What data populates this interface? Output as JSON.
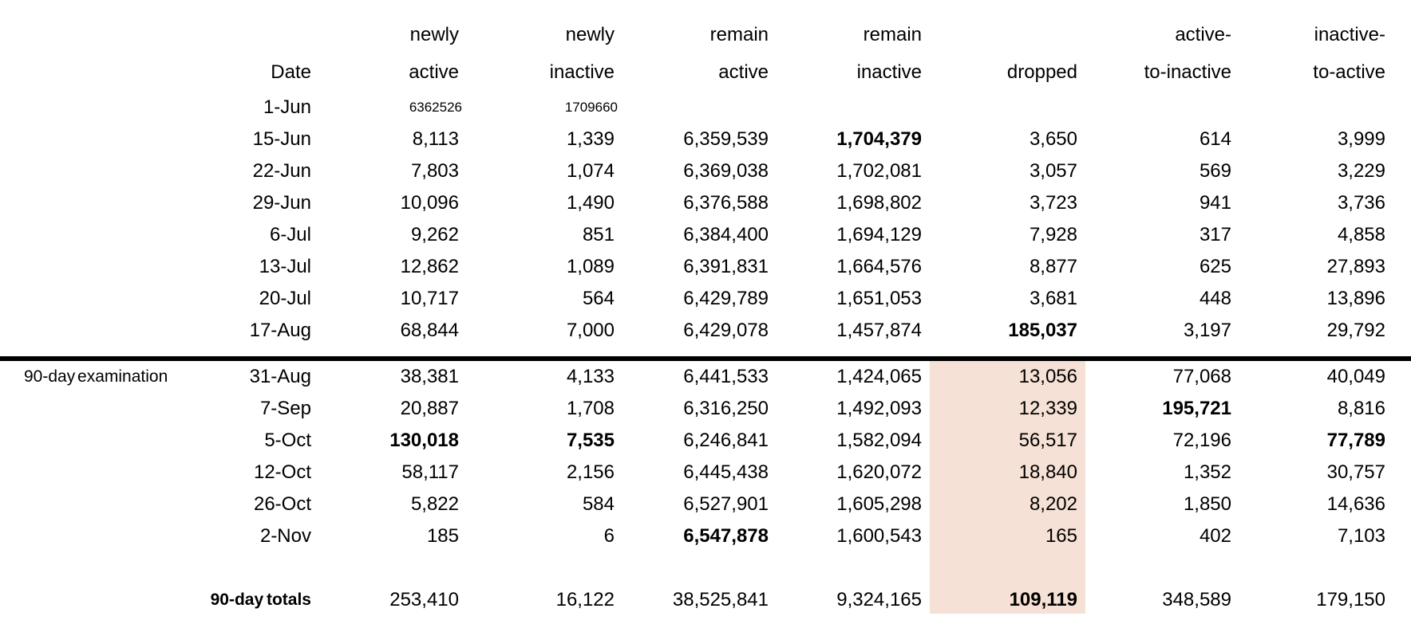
{
  "colors": {
    "highlight_band": "#f5e1d5",
    "divider_rule": "#000000",
    "text": "#000000",
    "background": "#ffffff"
  },
  "table": {
    "header_row1": [
      "",
      "",
      "newly",
      "newly",
      "remain",
      "remain",
      "",
      "active-",
      "inactive-"
    ],
    "header_row2": [
      "",
      "Date",
      "active",
      "inactive",
      "active",
      "inactive",
      "dropped",
      "to-inactive",
      "to-active"
    ],
    "section_label": "90-day examination",
    "rows": [
      {
        "label": "",
        "date": "1-Jun",
        "small": true,
        "cells": [
          {
            "v": "6362526"
          },
          {
            "v": "1709660"
          },
          {
            "v": ""
          },
          {
            "v": ""
          },
          {
            "v": ""
          },
          {
            "v": ""
          },
          {
            "v": ""
          }
        ]
      },
      {
        "label": "",
        "date": "15-Jun",
        "cells": [
          {
            "v": "8,113"
          },
          {
            "v": "1,339"
          },
          {
            "v": "6,359,539"
          },
          {
            "v": "1,704,379",
            "b": true
          },
          {
            "v": "3,650"
          },
          {
            "v": "614"
          },
          {
            "v": "3,999"
          }
        ]
      },
      {
        "label": "",
        "date": "22-Jun",
        "cells": [
          {
            "v": "7,803"
          },
          {
            "v": "1,074"
          },
          {
            "v": "6,369,038"
          },
          {
            "v": "1,702,081"
          },
          {
            "v": "3,057"
          },
          {
            "v": "569"
          },
          {
            "v": "3,229"
          }
        ]
      },
      {
        "label": "",
        "date": "29-Jun",
        "cells": [
          {
            "v": "10,096"
          },
          {
            "v": "1,490"
          },
          {
            "v": "6,376,588"
          },
          {
            "v": "1,698,802"
          },
          {
            "v": "3,723"
          },
          {
            "v": "941"
          },
          {
            "v": "3,736"
          }
        ]
      },
      {
        "label": "",
        "date": "6-Jul",
        "cells": [
          {
            "v": "9,262"
          },
          {
            "v": "851"
          },
          {
            "v": "6,384,400"
          },
          {
            "v": "1,694,129"
          },
          {
            "v": "7,928"
          },
          {
            "v": "317"
          },
          {
            "v": "4,858"
          }
        ]
      },
      {
        "label": "",
        "date": "13-Jul",
        "cells": [
          {
            "v": "12,862"
          },
          {
            "v": "1,089"
          },
          {
            "v": "6,391,831"
          },
          {
            "v": "1,664,576"
          },
          {
            "v": "8,877"
          },
          {
            "v": "625"
          },
          {
            "v": "27,893"
          }
        ]
      },
      {
        "label": "",
        "date": "20-Jul",
        "cells": [
          {
            "v": "10,717"
          },
          {
            "v": "564"
          },
          {
            "v": "6,429,789"
          },
          {
            "v": "1,651,053"
          },
          {
            "v": "3,681"
          },
          {
            "v": "448"
          },
          {
            "v": "13,896"
          }
        ]
      },
      {
        "label": "",
        "date": "17-Aug",
        "cells": [
          {
            "v": "68,844"
          },
          {
            "v": "7,000"
          },
          {
            "v": "6,429,078"
          },
          {
            "v": "1,457,874"
          },
          {
            "v": "185,037",
            "b": true
          },
          {
            "v": "3,197"
          },
          {
            "v": "29,792"
          }
        ]
      },
      {
        "label": "90-day examination",
        "date": "31-Aug",
        "divider_before": true,
        "cells": [
          {
            "v": "38,381"
          },
          {
            "v": "4,133"
          },
          {
            "v": "6,441,533"
          },
          {
            "v": "1,424,065"
          },
          {
            "v": "13,056"
          },
          {
            "v": "77,068"
          },
          {
            "v": "40,049"
          }
        ]
      },
      {
        "label": "",
        "date": "7-Sep",
        "cells": [
          {
            "v": "20,887"
          },
          {
            "v": "1,708"
          },
          {
            "v": "6,316,250"
          },
          {
            "v": "1,492,093"
          },
          {
            "v": "12,339"
          },
          {
            "v": "195,721",
            "b": true
          },
          {
            "v": "8,816"
          }
        ]
      },
      {
        "label": "",
        "date": "5-Oct",
        "cells": [
          {
            "v": "130,018",
            "b": true
          },
          {
            "v": "7,535",
            "b": true
          },
          {
            "v": "6,246,841"
          },
          {
            "v": "1,582,094"
          },
          {
            "v": "56,517"
          },
          {
            "v": "72,196"
          },
          {
            "v": "77,789",
            "b": true
          }
        ]
      },
      {
        "label": "",
        "date": "12-Oct",
        "cells": [
          {
            "v": "58,117"
          },
          {
            "v": "2,156"
          },
          {
            "v": "6,445,438"
          },
          {
            "v": "1,620,072"
          },
          {
            "v": "18,840"
          },
          {
            "v": "1,352"
          },
          {
            "v": "30,757"
          }
        ]
      },
      {
        "label": "",
        "date": "26-Oct",
        "cells": [
          {
            "v": "5,822"
          },
          {
            "v": "584"
          },
          {
            "v": "6,527,901"
          },
          {
            "v": "1,605,298"
          },
          {
            "v": "8,202"
          },
          {
            "v": "1,850"
          },
          {
            "v": "14,636"
          }
        ]
      },
      {
        "label": "",
        "date": "2-Nov",
        "cells": [
          {
            "v": "185"
          },
          {
            "v": "6"
          },
          {
            "v": "6,547,878",
            "b": true
          },
          {
            "v": "1,600,543"
          },
          {
            "v": "165"
          },
          {
            "v": "402"
          },
          {
            "v": "7,103"
          }
        ]
      }
    ],
    "totals_row": {
      "label": "",
      "date": "90-day totals",
      "cells": [
        {
          "v": "253,410"
        },
        {
          "v": "16,122"
        },
        {
          "v": "38,525,841"
        },
        {
          "v": "9,324,165"
        },
        {
          "v": "109,119",
          "b": true
        },
        {
          "v": "348,589"
        },
        {
          "v": "179,150"
        }
      ]
    }
  }
}
